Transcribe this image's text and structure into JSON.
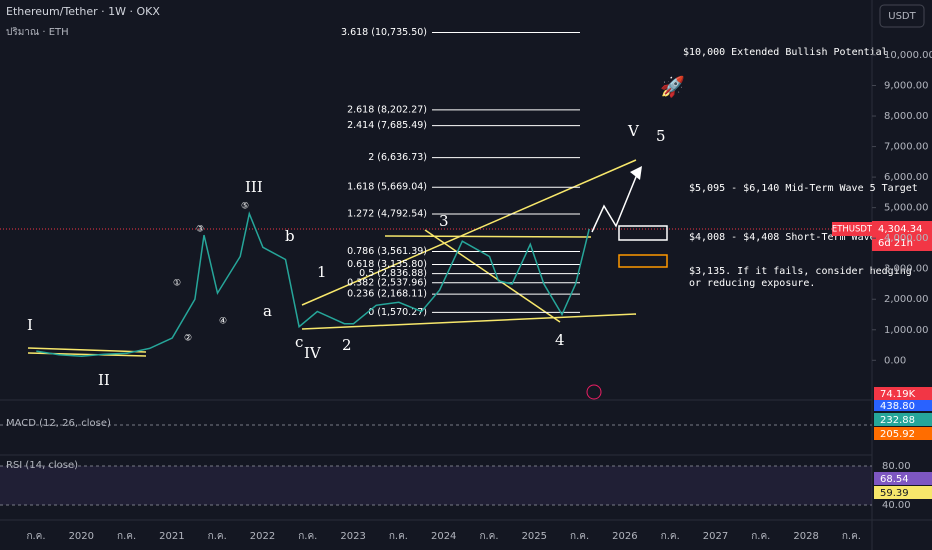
{
  "header": {
    "title": "Ethereum/Tether · 1W · OKX",
    "subtitle": "ปริมาณ · ETH",
    "currency": "USDT"
  },
  "chart_data": {
    "type": "line",
    "name": "ETHUSDT",
    "color": "#26a69a",
    "x": [
      2019.5,
      2019.75,
      2020.0,
      2020.25,
      2020.5,
      2020.75,
      2021.0,
      2021.25,
      2021.35,
      2021.5,
      2021.75,
      2021.85,
      2022.0,
      2022.25,
      2022.4,
      2022.6,
      2022.9,
      2023.0,
      2023.25,
      2023.5,
      2023.75,
      2023.95,
      2024.2,
      2024.5,
      2024.6,
      2024.75,
      2024.95,
      2025.1,
      2025.3,
      2025.45,
      2025.55,
      2025.6
    ],
    "values": [
      300,
      180,
      130,
      200,
      230,
      390,
      730,
      2000,
      4100,
      2200,
      3400,
      4800,
      3700,
      3300,
      1100,
      1600,
      1200,
      1200,
      1800,
      1900,
      1600,
      2300,
      3900,
      3400,
      2600,
      2500,
      3800,
      2500,
      1500,
      2500,
      3700,
      4304.34
    ],
    "xlim": [
      2019.1,
      2028.72
    ],
    "ylim": [
      -1300,
      11800
    ],
    "yticks": [
      {
        "value": 10000,
        "label": "10,000.00"
      },
      {
        "value": 9000,
        "label": "9,000.00"
      },
      {
        "value": 8000,
        "label": "8,000.00"
      },
      {
        "value": 7000,
        "label": "7,000.00"
      },
      {
        "value": 6000,
        "label": "6,000.00"
      },
      {
        "value": 5000,
        "label": "5,000.00"
      },
      {
        "value": 4000,
        "label": "4,000.00"
      },
      {
        "value": 3000,
        "label": "3,000.00"
      },
      {
        "value": 2000,
        "label": "2,000.00"
      },
      {
        "value": 1000,
        "label": "1,000.00"
      },
      {
        "value": 0,
        "label": "0.00"
      }
    ],
    "last_price": {
      "value": 4304.34,
      "label": "4,304.34"
    },
    "countdown": "6d 21h",
    "fib_levels": [
      {
        "value": 10735.5,
        "label": "3.618 (10,735.50)"
      },
      {
        "value": 8202.27,
        "label": "2.618 (8,202.27)"
      },
      {
        "value": 7685.49,
        "label": "2.414 (7,685.49)"
      },
      {
        "value": 6636.73,
        "label": "2 (6,636.73)"
      },
      {
        "value": 5669.04,
        "label": "1.618 (5,669.04)"
      },
      {
        "value": 4792.54,
        "label": "1.272 (4,792.54)"
      },
      {
        "value": 3561.39,
        "label": "0.786 (3,561.39)"
      },
      {
        "value": 3135.8,
        "label": "0.618 (3,135.80)"
      },
      {
        "value": 2836.88,
        "label": "0.5 (2,836.88)"
      },
      {
        "value": 2537.96,
        "label": "0.382 (2,537.96)"
      },
      {
        "value": 2168.11,
        "label": "0.236 (2,168.11)"
      },
      {
        "value": 1570.27,
        "label": "0 (1,570.27)"
      }
    ],
    "x_labels": [
      "ก.ค.",
      "2020",
      "ก.ค.",
      "2021",
      "ก.ค.",
      "2022",
      "ก.ค.",
      "2023",
      "ก.ค.",
      "2024",
      "ก.ค.",
      "2025",
      "ก.ค.",
      "2026",
      "ก.ค.",
      "2027",
      "ก.ค.",
      "2028",
      "ก.ค."
    ]
  },
  "annotations": [
    "$10,000 Extended Bullish Potential",
    "$5,095 - $6,140 Mid-Term Wave 5 Target",
    "$4,008 - $4,408  Short-Term Wave 5 Target",
    "$3,135. If it fails, consider hedging",
    "or reducing exposure."
  ],
  "waves": [
    "I",
    "II",
    "III",
    "IV",
    "V",
    "5",
    "1",
    "2",
    "3",
    "4",
    "a",
    "b",
    "c"
  ],
  "circled": [
    "①",
    "②",
    "③",
    "④",
    "⑤"
  ],
  "macd": {
    "title": "MACD (12, 26, close)",
    "values": [
      "74.19K",
      "438.80",
      "232.88",
      "205.92"
    ]
  },
  "rsi": {
    "title": "RSI (14, close)",
    "values": [
      "68.54",
      "59.39"
    ],
    "ticks": [
      "80.00",
      "40.00"
    ]
  }
}
